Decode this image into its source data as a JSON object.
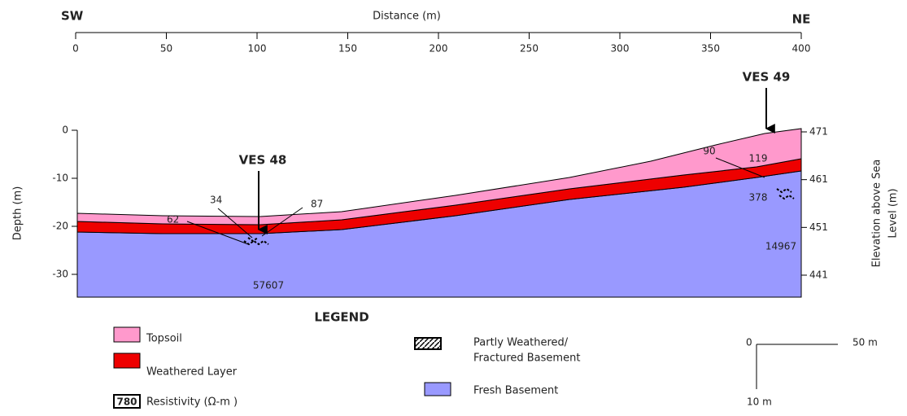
{
  "top_axis": {
    "title": "Distance (m)",
    "start_label": "SW",
    "end_label": "NE",
    "ticks": [
      0,
      50,
      100,
      150,
      200,
      250,
      300,
      350,
      400
    ]
  },
  "depth_axis": {
    "title": "Depth (m)",
    "ticks": [
      0,
      -10,
      -20,
      -30
    ]
  },
  "elevation_axis": {
    "title": [
      "Elevation above Sea",
      "Level (m)"
    ],
    "ticks": [
      471,
      461,
      451,
      441
    ]
  },
  "soundings": [
    {
      "label": "VES 48",
      "resistivities": [
        "62",
        "34",
        "87",
        "57607"
      ]
    },
    {
      "label": "VES 49",
      "resistivities": [
        "90",
        "119",
        "378",
        "14967"
      ]
    }
  ],
  "legend": {
    "title": "LEGEND",
    "resistivity_sample": "780",
    "items": [
      "Topsoil",
      "Weathered Layer",
      "Resistivity (Ω-m )",
      [
        "Partly Weathered/",
        "Fractured Basement"
      ],
      "Fresh Basement"
    ]
  },
  "scale": {
    "origin": "0",
    "horizontal": "50 m",
    "vertical": "10 m"
  }
}
